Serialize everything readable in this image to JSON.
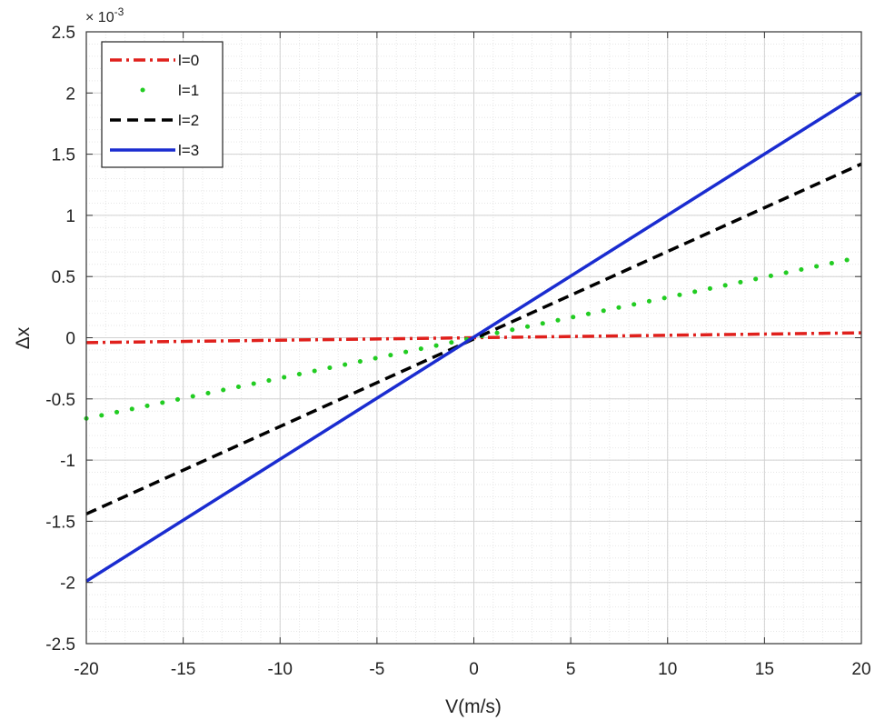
{
  "chart_data": {
    "type": "line",
    "xlabel": "V(m/s)",
    "ylabel": "Δx",
    "y_multiplier": "× 10",
    "y_multiplier_exponent": "-3",
    "xlim": [
      -20,
      20
    ],
    "ylim": [
      -2.5,
      2.5
    ],
    "x_ticks": [
      -20,
      -15,
      -10,
      -5,
      0,
      5,
      10,
      15,
      20
    ],
    "y_ticks": [
      -2.5,
      -2,
      -1.5,
      -1,
      -0.5,
      0,
      0.5,
      1,
      1.5,
      2,
      2.5
    ],
    "x_tick_labels": [
      "-20",
      "-15",
      "-10",
      "-5",
      "0",
      "5",
      "10",
      "15",
      "20"
    ],
    "y_tick_labels": [
      "-2.5",
      "-2",
      "-1.5",
      "-1",
      "-0.5",
      "0",
      "0.5",
      "1",
      "1.5",
      "2",
      "2.5"
    ],
    "grid": true,
    "minor_grid": true,
    "legend_position": "top-left",
    "series": [
      {
        "name": "l=0",
        "x": [
          -20,
          20
        ],
        "y": [
          -0.04,
          0.04
        ],
        "color": "#e0201c",
        "style": "dashdot"
      },
      {
        "name": "l=1",
        "x": [
          -20,
          20
        ],
        "y": [
          -0.66,
          0.66
        ],
        "color": "#22cc22",
        "style": "dotted"
      },
      {
        "name": "l=2",
        "x": [
          -20,
          20
        ],
        "y": [
          -1.44,
          1.42
        ],
        "color": "#000000",
        "style": "dashed"
      },
      {
        "name": "l=3",
        "x": [
          -20,
          20
        ],
        "y": [
          -1.99,
          2.0
        ],
        "color": "#1a2cd0",
        "style": "solid"
      }
    ]
  }
}
